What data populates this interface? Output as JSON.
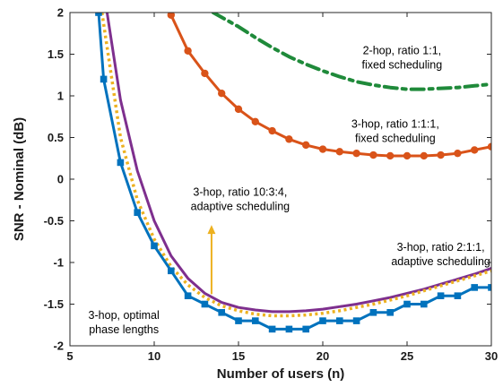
{
  "chart_data": {
    "type": "line",
    "title": "",
    "xlabel": "Number of users (n)",
    "ylabel": "SNR - Nominal (dB)",
    "xlim": [
      5,
      30
    ],
    "ylim": [
      -2,
      2
    ],
    "xticks": [
      5,
      10,
      15,
      20,
      25,
      30
    ],
    "yticks": [
      -2,
      -1.5,
      -1,
      -0.5,
      0,
      0.5,
      1,
      1.5,
      2
    ],
    "xtick_labels": [
      "5",
      "10",
      "15",
      "20",
      "25",
      "30"
    ],
    "ytick_labels": [
      "-2",
      "-1.5",
      "-1",
      "-0.5",
      "0",
      "0.5",
      "1",
      "1.5",
      "2"
    ],
    "grid": false,
    "series": [
      {
        "id": "two-hop-fixed",
        "color": "#1f8a3a",
        "style": "dashdot",
        "marker": "none",
        "x": [
          13.5,
          15,
          16,
          17,
          18,
          19,
          20,
          21,
          22,
          23,
          24,
          25,
          26,
          27,
          28,
          29,
          30
        ],
        "y": [
          2.0,
          1.83,
          1.7,
          1.58,
          1.47,
          1.38,
          1.3,
          1.23,
          1.17,
          1.13,
          1.1,
          1.08,
          1.08,
          1.09,
          1.1,
          1.12,
          1.14
        ]
      },
      {
        "id": "three-hop-fixed",
        "color": "#d95319",
        "style": "solid",
        "marker": "circle",
        "x": [
          11,
          12,
          13,
          14,
          15,
          16,
          17,
          18,
          19,
          20,
          21,
          22,
          23,
          24,
          25,
          26,
          27,
          28,
          29,
          30
        ],
        "y": [
          1.97,
          1.54,
          1.27,
          1.03,
          0.84,
          0.69,
          0.58,
          0.48,
          0.41,
          0.36,
          0.33,
          0.31,
          0.29,
          0.28,
          0.28,
          0.28,
          0.29,
          0.31,
          0.35,
          0.39
        ]
      },
      {
        "id": "three-hop-2-1-1",
        "color": "#7e2f8e",
        "style": "solid",
        "marker": "none",
        "x": [
          7.2,
          8,
          9,
          10,
          11,
          12,
          13,
          14,
          15,
          16,
          17,
          18,
          19,
          20,
          21,
          22,
          23,
          24,
          25,
          26,
          27,
          28,
          29,
          30
        ],
        "y": [
          2.0,
          0.95,
          0.1,
          -0.5,
          -0.92,
          -1.19,
          -1.37,
          -1.48,
          -1.54,
          -1.57,
          -1.59,
          -1.59,
          -1.58,
          -1.56,
          -1.53,
          -1.5,
          -1.46,
          -1.42,
          -1.37,
          -1.32,
          -1.26,
          -1.2,
          -1.14,
          -1.07
        ]
      },
      {
        "id": "three-hop-10-3-4",
        "color": "#edb120",
        "style": "dotted",
        "marker": "none",
        "x": [
          6.9,
          8,
          9,
          10,
          11,
          12,
          13,
          14,
          15,
          16,
          17,
          18,
          19,
          20,
          21,
          22,
          23,
          24,
          25,
          26,
          27,
          28,
          29,
          30
        ],
        "y": [
          2.0,
          0.5,
          -0.25,
          -0.72,
          -1.05,
          -1.27,
          -1.42,
          -1.52,
          -1.58,
          -1.62,
          -1.64,
          -1.64,
          -1.63,
          -1.61,
          -1.58,
          -1.54,
          -1.5,
          -1.45,
          -1.4,
          -1.34,
          -1.28,
          -1.22,
          -1.16,
          -1.1
        ]
      },
      {
        "id": "three-hop-optimal",
        "color": "#0072bd",
        "style": "solid",
        "marker": "square",
        "x": [
          6.7,
          7,
          8,
          9,
          10,
          11,
          12,
          13,
          14,
          15,
          16,
          17,
          18,
          19,
          20,
          21,
          22,
          23,
          24,
          25,
          26,
          27,
          28,
          29,
          30
        ],
        "y": [
          2.0,
          1.2,
          0.2,
          -0.4,
          -0.8,
          -1.1,
          -1.4,
          -1.5,
          -1.6,
          -1.7,
          -1.7,
          -1.8,
          -1.8,
          -1.8,
          -1.7,
          -1.7,
          -1.7,
          -1.6,
          -1.6,
          -1.5,
          -1.5,
          -1.4,
          -1.4,
          -1.3,
          -1.3
        ]
      }
    ],
    "annotations": [
      {
        "id": "annot-2hop-fixed",
        "lines": [
          "2-hop, ratio 1:1,",
          "fixed scheduling"
        ],
        "x": 24.7,
        "y": 1.5
      },
      {
        "id": "annot-3hop-fixed",
        "lines": [
          "3-hop, ratio 1:1:1,",
          "fixed scheduling"
        ],
        "x": 24.3,
        "y": 0.62
      },
      {
        "id": "annot-3hop-10-3-4",
        "lines": [
          "3-hop, ratio 10:3:4,",
          "adaptive scheduling"
        ],
        "x": 15.1,
        "y": -0.2
      },
      {
        "id": "annot-3hop-2-1-1",
        "lines": [
          "3-hop, ratio 2:1:1,",
          "adaptive scheduling"
        ],
        "x": 27.0,
        "y": -0.86
      },
      {
        "id": "annot-3hop-optimal",
        "lines": [
          "3-hop, optimal",
          "phase lengths"
        ],
        "x": 8.2,
        "y": -1.68
      }
    ],
    "arrow": {
      "from": [
        13.4,
        -1.38
      ],
      "to": [
        13.4,
        -0.55
      ],
      "color": "#edb120"
    }
  }
}
